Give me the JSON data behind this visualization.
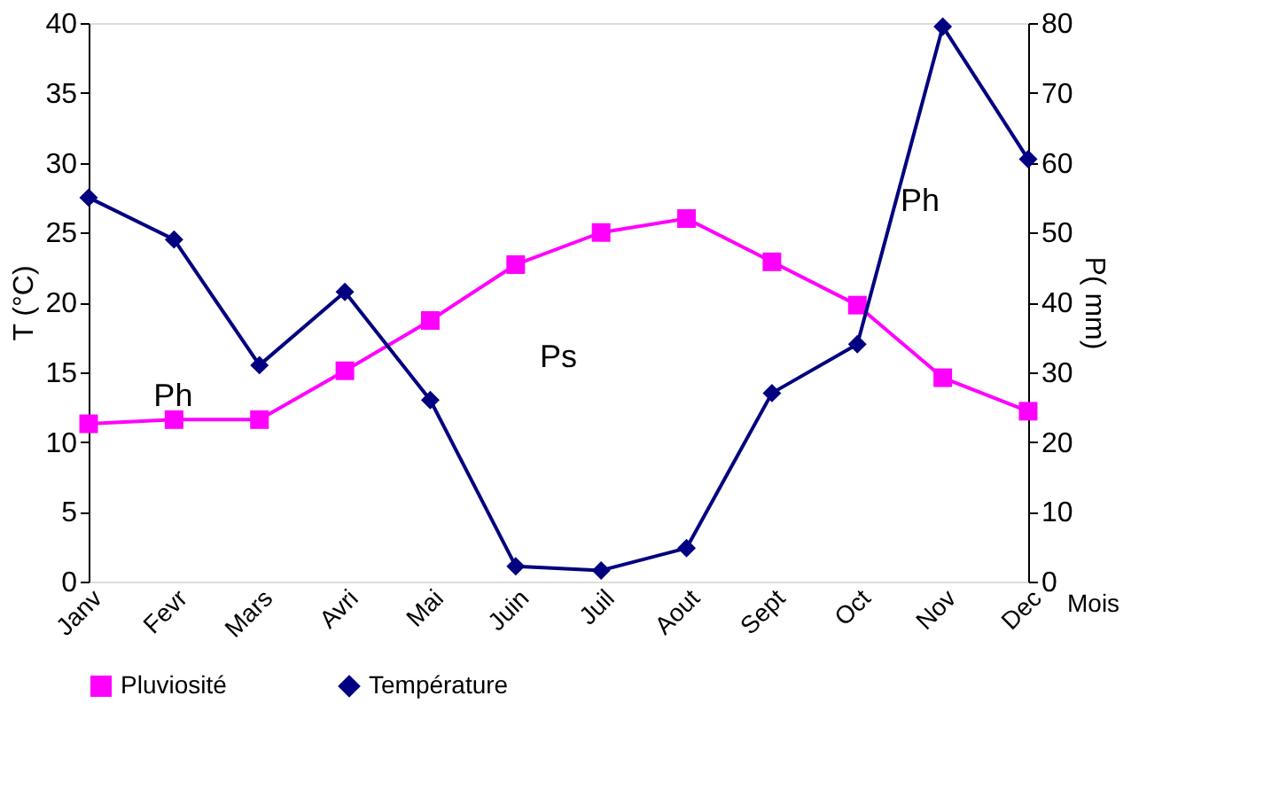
{
  "chart_data": {
    "type": "line",
    "categories": [
      "Janv",
      "Fevr",
      "Mars",
      "Avri",
      "Mai",
      "Juin",
      "Juil",
      "Aout",
      "Sept",
      "Oct",
      "Nov",
      "Dec"
    ],
    "xlabel": "Mois",
    "ylabel": "T (°C)",
    "y2label": "P( mm)",
    "ylim": [
      0,
      40
    ],
    "yticks": [
      0,
      5,
      10,
      15,
      20,
      25,
      30,
      35,
      40
    ],
    "y2lim": [
      0,
      80
    ],
    "y2ticks": [
      0,
      10,
      20,
      30,
      40,
      50,
      60,
      70,
      80
    ],
    "series": [
      {
        "name": "Pluviosité",
        "color": "#ff00ff",
        "marker": "square",
        "values": [
          11.3,
          11.6,
          11.6,
          15.1,
          18.7,
          22.7,
          25,
          26,
          22.9,
          19.8,
          14.6,
          12.2
        ]
      },
      {
        "name": "Température",
        "color": "#000080",
        "marker": "diamond",
        "axis": "y2",
        "values": [
          55,
          49,
          31,
          41.5,
          26,
          2.2,
          1.6,
          4.8,
          27,
          34,
          79.5,
          60.5
        ]
      }
    ],
    "annotations": [
      "Ph",
      "Ps",
      "Ph"
    ],
    "legend": "bottom",
    "grid": false,
    "line_style": "solid"
  }
}
